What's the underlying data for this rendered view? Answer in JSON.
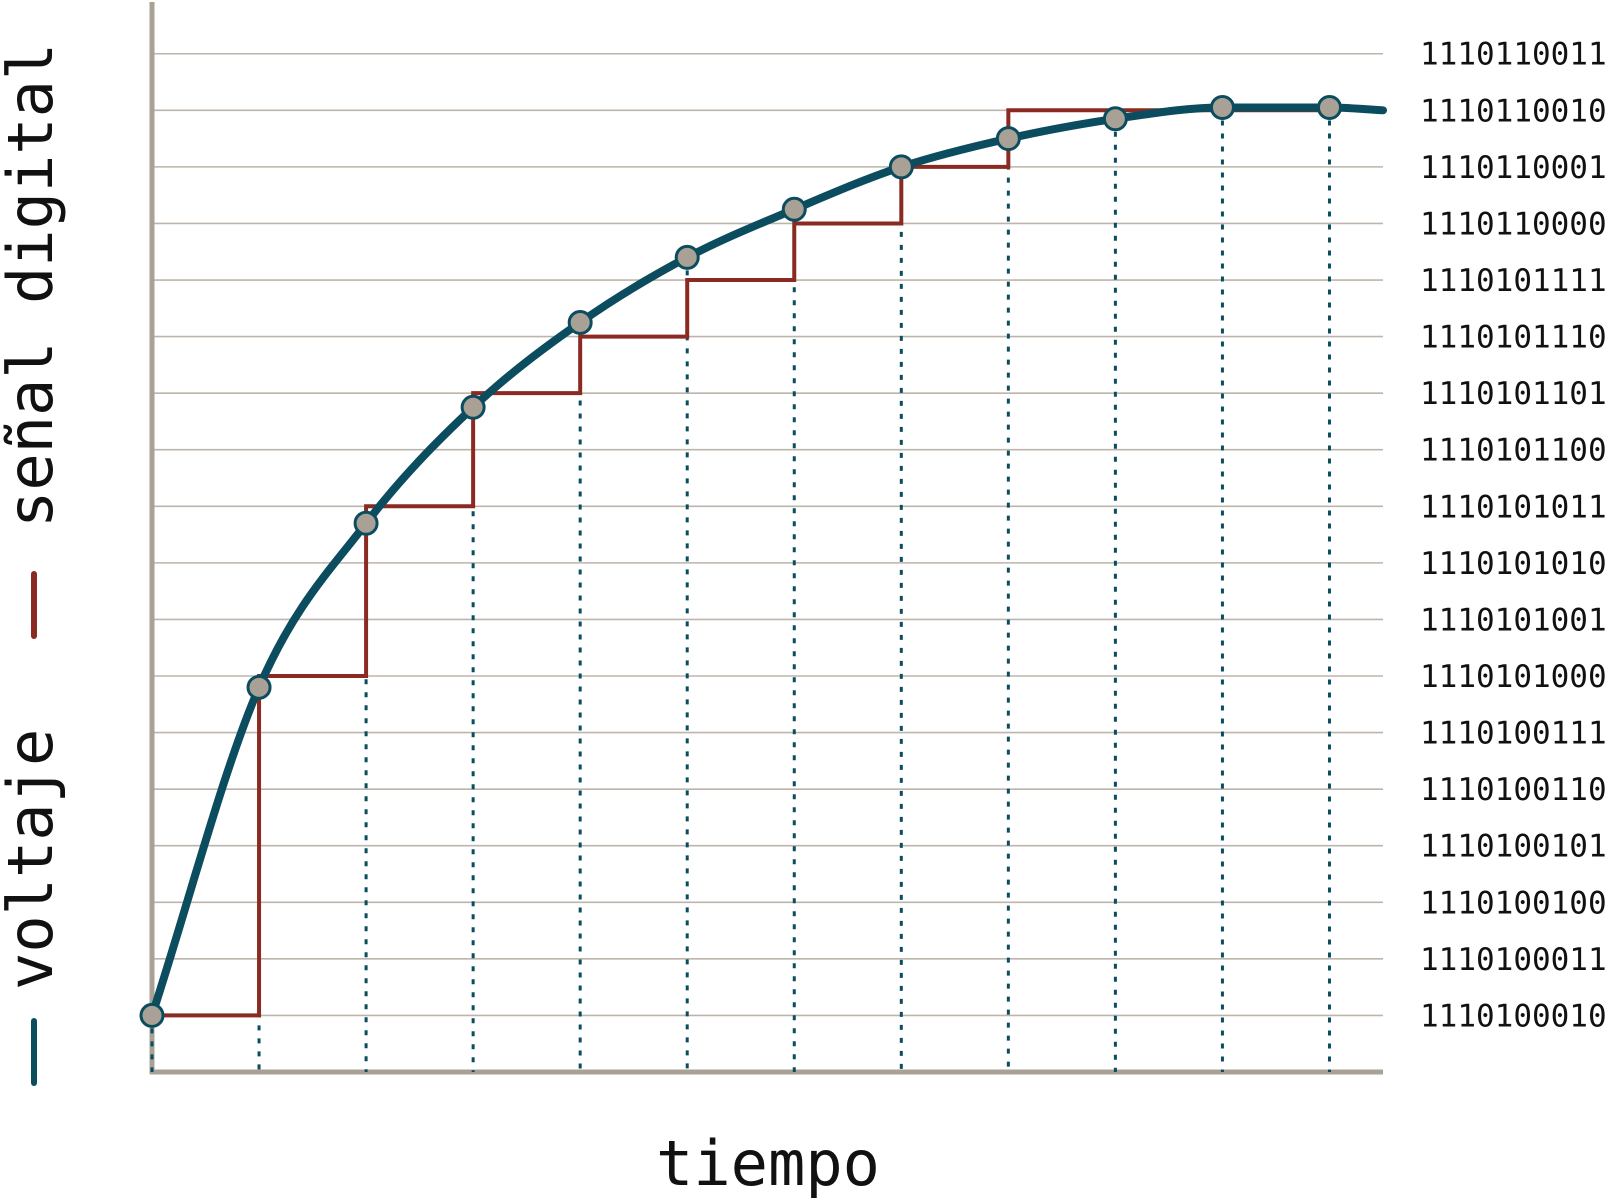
{
  "chart_data": {
    "type": "line",
    "xlabel": "tiempo",
    "ylabel": "",
    "legend": [
      {
        "label": "voltaje",
        "color": "#0b4d5f"
      },
      {
        "label": "señal digital",
        "color": "#8b2a22"
      }
    ],
    "legend_placement": "left",
    "grid": true,
    "y_levels": [
      "1110100010",
      "1110100011",
      "1110100100",
      "1110100101",
      "1110100110",
      "1110100111",
      "1110101000",
      "1110101001",
      "1110101010",
      "1110101011",
      "1110101100",
      "1110101101",
      "1110101110",
      "1110101111",
      "1110110000",
      "1110110001",
      "1110110010",
      "1110110011"
    ],
    "ylim": [
      0,
      18.95
    ],
    "xlim": [
      0,
      11.5
    ],
    "series": [
      {
        "name": "voltaje",
        "type": "line",
        "color": "#0b4d5f",
        "x": [
          0,
          1,
          2,
          3,
          4,
          5,
          6,
          7,
          8,
          9,
          10,
          11,
          11.5
        ],
        "y": [
          1,
          6.8,
          9.7,
          11.75,
          13.25,
          14.4,
          15.25,
          16.0,
          16.5,
          16.85,
          17.05,
          17.05,
          17.0
        ]
      },
      {
        "name": "señal digital",
        "type": "step",
        "color": "#8b2a22",
        "x": [
          0,
          1,
          2,
          3,
          4,
          5,
          6,
          7,
          8,
          9,
          10,
          11
        ],
        "y": [
          1,
          7,
          10,
          12,
          13,
          14,
          15,
          16,
          17,
          17,
          17,
          17
        ]
      }
    ],
    "samples": {
      "x": [
        0,
        1,
        2,
        3,
        4,
        5,
        6,
        7,
        8,
        9,
        10,
        11
      ],
      "y": [
        1,
        6.8,
        9.7,
        11.75,
        13.25,
        14.4,
        15.25,
        16.0,
        16.5,
        16.85,
        17.05,
        17.05
      ]
    },
    "colors": {
      "axis": "#aaa196",
      "grid": "#bdb5ab",
      "voltage": "#0b4d5f",
      "signal": "#8b2a22",
      "marker_fill": "#aaa196",
      "marker_stroke": "#0b4d5f"
    }
  }
}
